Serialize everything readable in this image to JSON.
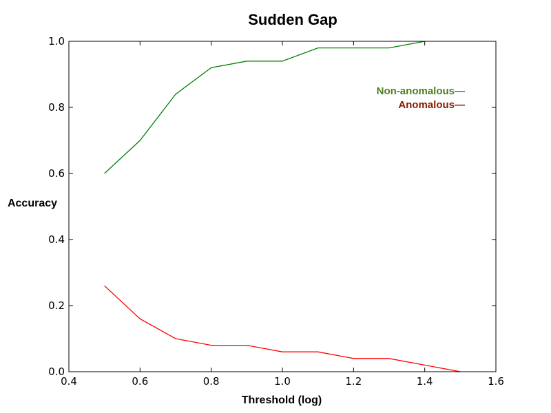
{
  "chart_data": {
    "type": "line",
    "title": "Sudden Gap",
    "xlabel": "Threshold (log)",
    "ylabel": "Accuracy",
    "xlim": [
      0.4,
      1.6
    ],
    "ylim": [
      0.0,
      1.0
    ],
    "xticks": [
      "0.4",
      "0.6",
      "0.8",
      "1.0",
      "1.2",
      "1.4",
      "1.6"
    ],
    "yticks": [
      "0.0",
      "0.2",
      "0.4",
      "0.6",
      "0.8",
      "1.0"
    ],
    "grid": false,
    "legend_position": "top-right",
    "series": [
      {
        "name": "Non-anomalous",
        "legend_label": "Non-anomalous—",
        "color": "#008000",
        "legend_color": "#4a7f22",
        "x": [
          0.5,
          0.6,
          0.7,
          0.8,
          0.9,
          1.0,
          1.1,
          1.2,
          1.3,
          1.4
        ],
        "y": [
          0.6,
          0.7,
          0.84,
          0.92,
          0.94,
          0.94,
          0.98,
          0.98,
          0.98,
          1.0
        ]
      },
      {
        "name": "Anomalous",
        "legend_label": "Anomalous—",
        "color": "#ff0000",
        "legend_color": "#8b1a00",
        "x": [
          0.5,
          0.6,
          0.7,
          0.8,
          0.9,
          1.0,
          1.1,
          1.2,
          1.3,
          1.5
        ],
        "y": [
          0.26,
          0.16,
          0.1,
          0.08,
          0.08,
          0.06,
          0.06,
          0.04,
          0.04,
          0.0
        ]
      }
    ]
  }
}
